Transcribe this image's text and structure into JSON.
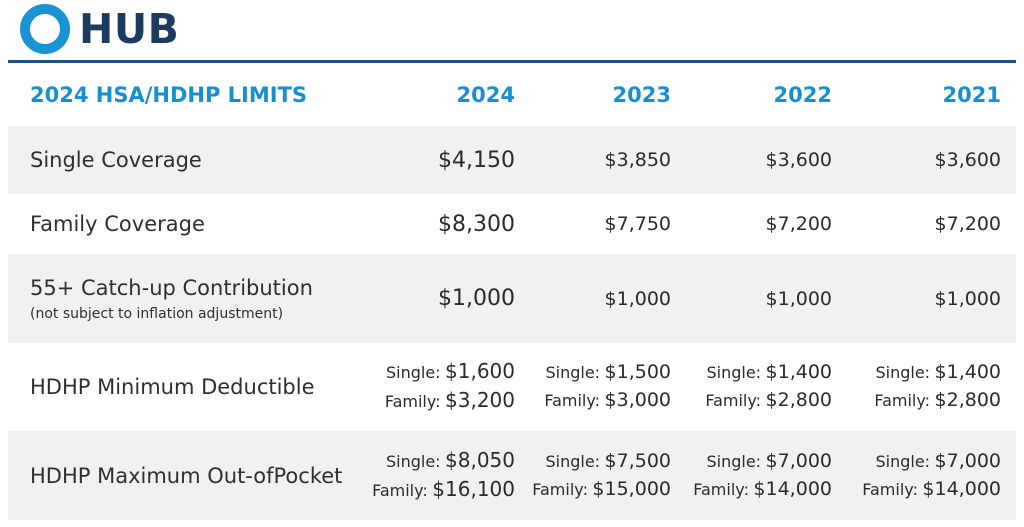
{
  "brand": {
    "name": "HUB",
    "ring_color": "#1a93d4",
    "text_color": "#1d3a5f",
    "rule_color": "#1b4f8a"
  },
  "table": {
    "title": "2024 HSA/HDHP LIMITS",
    "years": [
      "2024",
      "2023",
      "2022",
      "2021"
    ],
    "rows": [
      {
        "label": "Single Coverage",
        "values": [
          "$4,150",
          "$3,850",
          "$3,600",
          "$3,600"
        ]
      },
      {
        "label": "Family Coverage",
        "values": [
          "$8,300",
          "$7,750",
          "$7,200",
          "$7,200"
        ]
      },
      {
        "label": "55+ Catch-up Contribution",
        "sublabel": "(not subject to inflation adjustment)",
        "values": [
          "$1,000",
          "$1,000",
          "$1,000",
          "$1,000"
        ]
      },
      {
        "label": "HDHP Minimum Deductible",
        "single_label": "Single:",
        "family_label": "Family:",
        "single": [
          "$1,600",
          "$1,500",
          "$1,400",
          "$1,400"
        ],
        "family": [
          "$3,200",
          "$3,000",
          "$2,800",
          "$2,800"
        ]
      },
      {
        "label": "HDHP Maximum Out-ofPocket",
        "single_label": "Single:",
        "family_label": "Family:",
        "single": [
          "$8,050",
          "$7,500",
          "$7,000",
          "$7,000"
        ],
        "family": [
          "$16,100",
          "$15,000",
          "$14,000",
          "$14,000"
        ]
      }
    ]
  },
  "colors": {
    "header_blue": "#1a8fd0",
    "row_shade": "#f1f1f1"
  }
}
